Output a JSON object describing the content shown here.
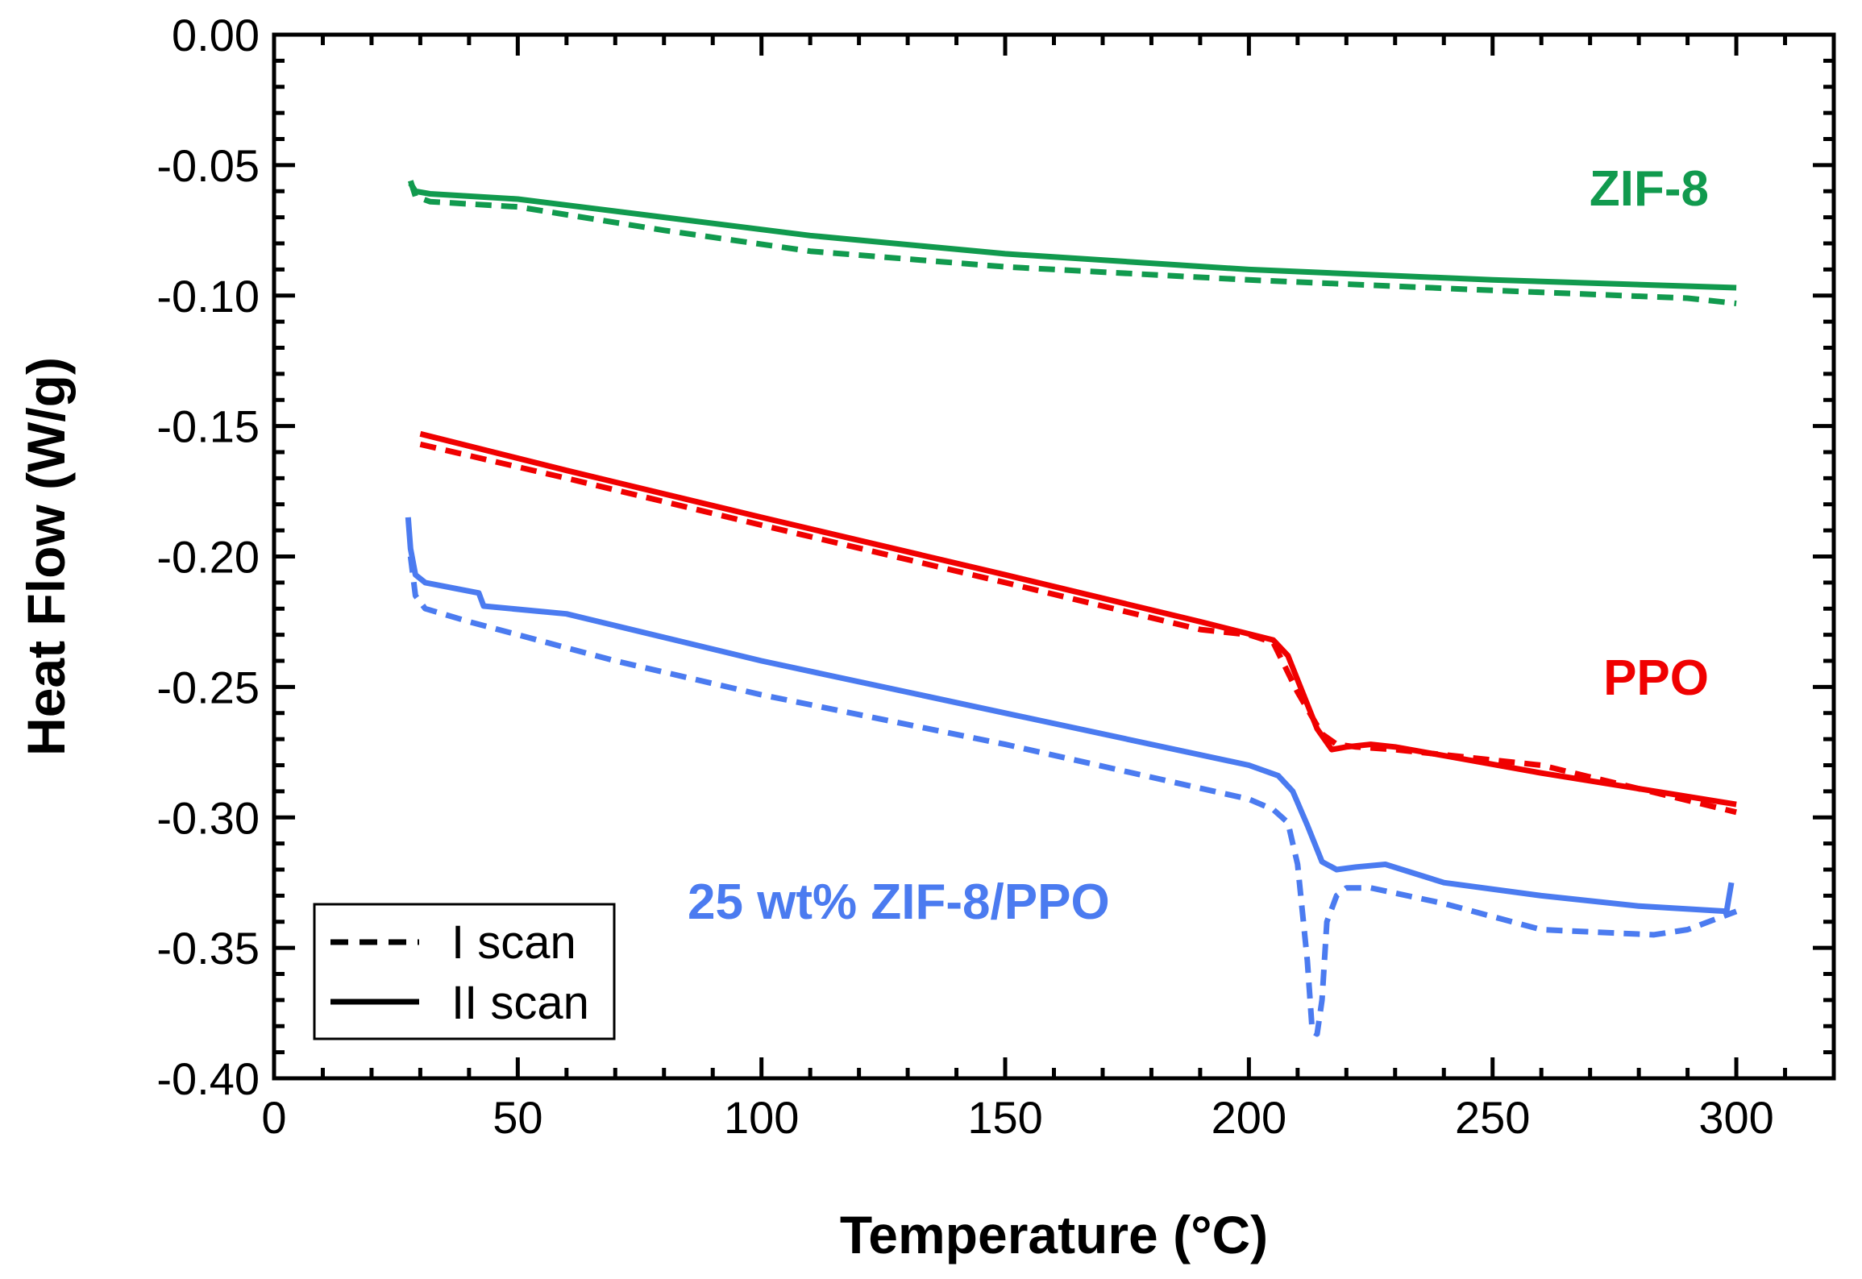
{
  "chart_data": {
    "type": "line",
    "title": "",
    "xlabel": "Temperature (°C)",
    "ylabel": "Heat Flow (W/g)",
    "xlim": [
      0,
      320
    ],
    "ylim": [
      -0.4,
      0.0
    ],
    "xticks": [
      0,
      50,
      100,
      150,
      200,
      250,
      300
    ],
    "xtick_labels": [
      "0",
      "50",
      "100",
      "150",
      "200",
      "250",
      "300"
    ],
    "yticks": [
      0.0,
      -0.05,
      -0.1,
      -0.15,
      -0.2,
      -0.25,
      -0.3,
      -0.35,
      -0.4
    ],
    "ytick_labels": [
      "0.00",
      "-0.05",
      "-0.10",
      "-0.15",
      "-0.20",
      "-0.25",
      "-0.30",
      "-0.35",
      "-0.40"
    ],
    "grid": false,
    "colors": {
      "zif8": "#119a4e",
      "ppo": "#f00000",
      "composite": "#4b7bf0"
    },
    "legend": {
      "location": "bottom-left",
      "entries": [
        {
          "label": "I scan",
          "style": "dashed"
        },
        {
          "label": "II scan",
          "style": "solid"
        }
      ]
    },
    "annotations": [
      {
        "text": "ZIF-8",
        "series_group": "zif8"
      },
      {
        "text": "PPO",
        "series_group": "ppo"
      },
      {
        "text": "25 wt% ZIF-8/PPO",
        "series_group": "composite"
      }
    ],
    "series": [
      {
        "name": "ZIF-8 I scan",
        "group": "zif8",
        "style": "dashed",
        "x": [
          28,
          29,
          32,
          50,
          80,
          110,
          150,
          200,
          250,
          290,
          300
        ],
        "y": [
          -0.056,
          -0.062,
          -0.064,
          -0.066,
          -0.075,
          -0.083,
          -0.089,
          -0.094,
          -0.098,
          -0.101,
          -0.103
        ]
      },
      {
        "name": "ZIF-8 II scan",
        "group": "zif8",
        "style": "solid",
        "x": [
          28,
          29,
          32,
          50,
          80,
          110,
          150,
          200,
          250,
          300
        ],
        "y": [
          -0.057,
          -0.06,
          -0.061,
          -0.063,
          -0.07,
          -0.077,
          -0.084,
          -0.09,
          -0.094,
          -0.097
        ]
      },
      {
        "name": "PPO I scan",
        "group": "ppo",
        "style": "dashed",
        "x": [
          30,
          60,
          100,
          150,
          190,
          200,
          205,
          210,
          215,
          218,
          222,
          230,
          260,
          300
        ],
        "y": [
          -0.157,
          -0.17,
          -0.188,
          -0.21,
          -0.228,
          -0.23,
          -0.233,
          -0.252,
          -0.268,
          -0.272,
          -0.273,
          -0.274,
          -0.28,
          -0.298
        ]
      },
      {
        "name": "PPO II scan",
        "group": "ppo",
        "style": "solid",
        "x": [
          30,
          60,
          100,
          150,
          190,
          205,
          208,
          211,
          214,
          217,
          220,
          225,
          230,
          260,
          300
        ],
        "y": [
          -0.153,
          -0.167,
          -0.185,
          -0.207,
          -0.225,
          -0.232,
          -0.238,
          -0.252,
          -0.266,
          -0.274,
          -0.273,
          -0.272,
          -0.273,
          -0.283,
          -0.295
        ]
      },
      {
        "name": "25 wt% ZIF-8/PPO I scan",
        "group": "composite",
        "style": "dashed",
        "x": [
          28,
          29,
          31,
          40,
          70,
          100,
          150,
          200,
          205,
          208,
          210,
          212,
          213,
          214,
          215,
          216,
          218,
          220,
          225,
          240,
          260,
          283,
          290,
          300
        ],
        "y": [
          -0.2,
          -0.215,
          -0.22,
          -0.225,
          -0.24,
          -0.253,
          -0.272,
          -0.293,
          -0.297,
          -0.302,
          -0.318,
          -0.355,
          -0.382,
          -0.383,
          -0.37,
          -0.34,
          -0.33,
          -0.327,
          -0.327,
          -0.333,
          -0.343,
          -0.345,
          -0.343,
          -0.336
        ]
      },
      {
        "name": "25 wt% ZIF-8/PPO II scan",
        "group": "composite",
        "style": "solid",
        "x": [
          27.5,
          28,
          29,
          31,
          42,
          43,
          60,
          100,
          150,
          200,
          206,
          209,
          212,
          215,
          218,
          222,
          228,
          240,
          260,
          280,
          298,
          299
        ],
        "y": [
          -0.185,
          -0.197,
          -0.207,
          -0.21,
          -0.214,
          -0.219,
          -0.222,
          -0.24,
          -0.26,
          -0.28,
          -0.284,
          -0.29,
          -0.303,
          -0.317,
          -0.32,
          -0.319,
          -0.318,
          -0.325,
          -0.33,
          -0.334,
          -0.336,
          -0.325
        ]
      }
    ]
  }
}
